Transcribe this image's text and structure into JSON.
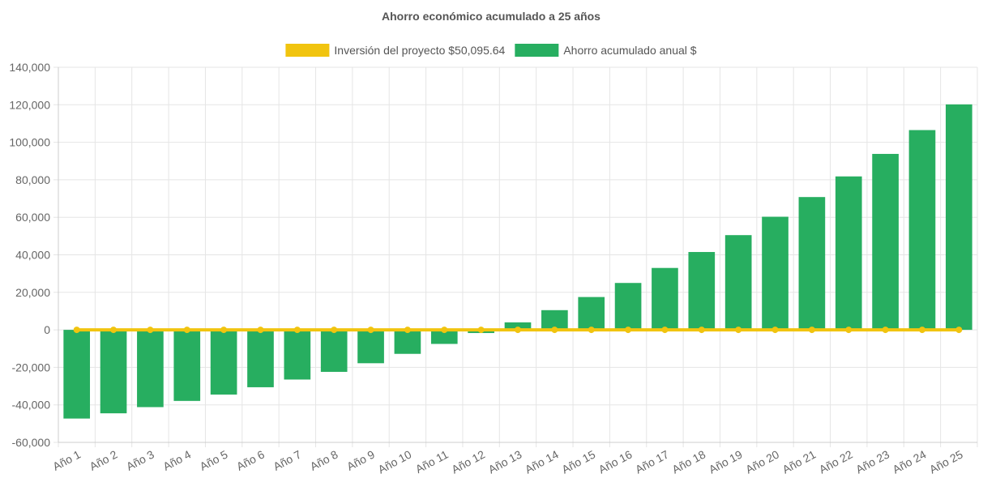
{
  "chart_data": {
    "type": "bar",
    "title": "Ahorro económico acumulado a 25 años",
    "categories": [
      "Año 1",
      "Año 2",
      "Año 3",
      "Año 4",
      "Año 5",
      "Año 6",
      "Año 7",
      "Año 8",
      "Año 9",
      "Año 10",
      "Año 11",
      "Año 12",
      "Año 13",
      "Año 14",
      "Año 15",
      "Año 16",
      "Año 17",
      "Año 18",
      "Año 19",
      "Año 20",
      "Año 21",
      "Año 22",
      "Año 23",
      "Año 24",
      "Año 25"
    ],
    "series": [
      {
        "name": "Inversión del proyecto $50,095.64",
        "type": "line",
        "color": "#f1c40f",
        "values": [
          0,
          0,
          0,
          0,
          0,
          0,
          0,
          0,
          0,
          0,
          0,
          0,
          0,
          0,
          0,
          0,
          0,
          0,
          0,
          0,
          0,
          0,
          0,
          0,
          0
        ]
      },
      {
        "name": "Ahorro acumulado anual $",
        "type": "bar",
        "color": "#27ae60",
        "values": [
          -47300,
          -44500,
          -41200,
          -37900,
          -34500,
          -30600,
          -26500,
          -22400,
          -17800,
          -12800,
          -7500,
          -1700,
          4000,
          10500,
          17500,
          25000,
          33000,
          41500,
          50500,
          60300,
          70800,
          81800,
          93800,
          106500,
          120200
        ]
      }
    ],
    "ylim": [
      -60000,
      140000
    ],
    "yticks": [
      -60000,
      -40000,
      -20000,
      0,
      20000,
      40000,
      60000,
      80000,
      100000,
      120000,
      140000
    ],
    "grid": true,
    "legend_position": "top-center"
  },
  "colors": {
    "bar": "#27ae60",
    "line": "#f1c40f",
    "grid": "#e5e5e5",
    "text": "#666666"
  }
}
